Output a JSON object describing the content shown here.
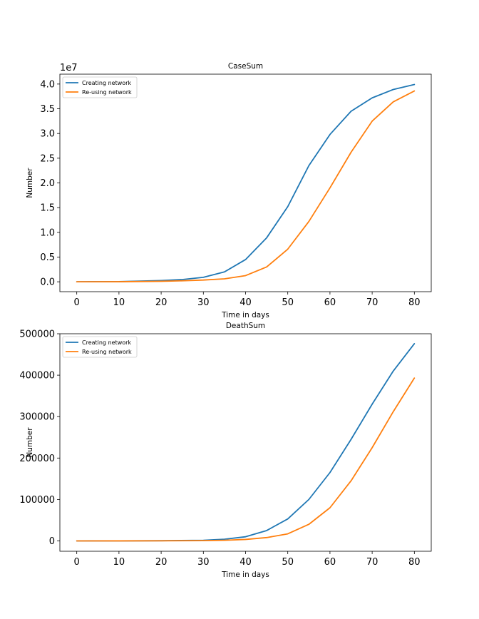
{
  "figure": {
    "background": "#ffffff",
    "series_colors": [
      "#1f77b4",
      "#ff7f0e"
    ]
  },
  "chart_data": [
    {
      "type": "line",
      "title": "CaseSum",
      "xlabel": "Time in days",
      "ylabel": "Number",
      "offset_text": "1e7",
      "xlim": [
        -4,
        84
      ],
      "ylim": [
        -2000000,
        42000000
      ],
      "x_ticks": [
        0,
        10,
        20,
        30,
        40,
        50,
        60,
        70,
        80
      ],
      "x_tick_labels": [
        "0",
        "10",
        "20",
        "30",
        "40",
        "50",
        "60",
        "70",
        "80"
      ],
      "y_ticks": [
        0,
        5000000,
        10000000,
        15000000,
        20000000,
        25000000,
        30000000,
        35000000,
        40000000
      ],
      "y_tick_labels": [
        "0.0",
        "0.5",
        "1.0",
        "1.5",
        "2.0",
        "2.5",
        "3.0",
        "3.5",
        "4.0"
      ],
      "grid": false,
      "legend": "top-left",
      "x": [
        0,
        10,
        20,
        25,
        30,
        35,
        40,
        45,
        50,
        55,
        60,
        65,
        70,
        75,
        80
      ],
      "series": [
        {
          "name": "Creating network",
          "color": "#1f77b4",
          "values": [
            0,
            30000,
            250000,
            450000,
            900000,
            2000000,
            4500000,
            8900000,
            15200000,
            23500000,
            29800000,
            34500000,
            37200000,
            38900000,
            39900000
          ]
        },
        {
          "name": "Re-using network",
          "color": "#ff7f0e",
          "values": [
            0,
            10000,
            100000,
            200000,
            350000,
            600000,
            1250000,
            3000000,
            6600000,
            12200000,
            19000000,
            26200000,
            32500000,
            36400000,
            38600000
          ]
        }
      ]
    },
    {
      "type": "line",
      "title": "DeathSum",
      "xlabel": "Time in days",
      "ylabel": "Number",
      "xlim": [
        -4,
        84
      ],
      "ylim": [
        -25000,
        500000
      ],
      "x_ticks": [
        0,
        10,
        20,
        30,
        40,
        50,
        60,
        70,
        80
      ],
      "x_tick_labels": [
        "0",
        "10",
        "20",
        "30",
        "40",
        "50",
        "60",
        "70",
        "80"
      ],
      "y_ticks": [
        0,
        100000,
        200000,
        300000,
        400000,
        500000
      ],
      "y_tick_labels": [
        "0",
        "100000",
        "200000",
        "300000",
        "400000",
        "500000"
      ],
      "grid": false,
      "legend": "top-left",
      "x": [
        0,
        10,
        20,
        30,
        35,
        40,
        45,
        50,
        55,
        60,
        65,
        70,
        75,
        80
      ],
      "series": [
        {
          "name": "Creating network",
          "color": "#1f77b4",
          "values": [
            0,
            100,
            500,
            1500,
            4000,
            10000,
            25000,
            53000,
            100000,
            165000,
            245000,
            330000,
            410000,
            476000
          ]
        },
        {
          "name": "Re-using network",
          "color": "#ff7f0e",
          "values": [
            0,
            50,
            200,
            600,
            1500,
            3500,
            8000,
            17000,
            40000,
            80000,
            145000,
            225000,
            312000,
            393000
          ]
        }
      ]
    }
  ]
}
